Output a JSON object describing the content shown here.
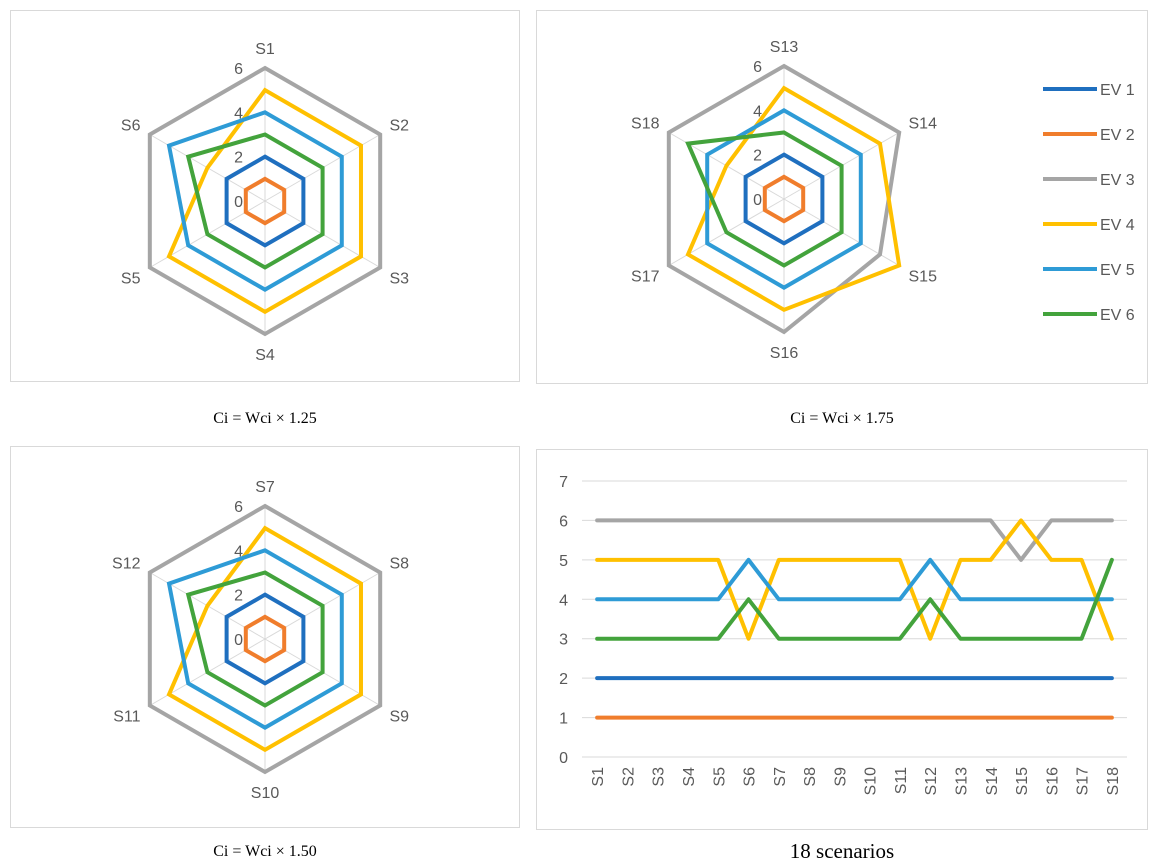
{
  "colors": {
    "EV 1": "#1f6fbf",
    "EV 2": "#f07d2c",
    "EV 3": "#a5a5a5",
    "EV 4": "#ffc000",
    "EV 5": "#2e9bd6",
    "EV 6": "#43a33c",
    "grid": "#d9d9d9"
  },
  "captions": {
    "radar1": "Ci = Wci × 1.25",
    "radar2": "Ci = Wci × 1.75",
    "radar3": "Ci = Wci × 1.50",
    "line": "18 scenarios"
  },
  "chart_data": [
    {
      "type": "radar",
      "caption": "Ci = Wci × 1.25",
      "categories": [
        "S1",
        "S2",
        "S3",
        "S4",
        "S5",
        "S6"
      ],
      "rlim": [
        0,
        6
      ],
      "ticks": [
        "0",
        "2",
        "4",
        "6"
      ],
      "series": [
        {
          "name": "EV 1",
          "values": [
            2,
            2,
            2,
            2,
            2,
            2
          ]
        },
        {
          "name": "EV 2",
          "values": [
            1,
            1,
            1,
            1,
            1,
            1
          ]
        },
        {
          "name": "EV 3",
          "values": [
            6,
            6,
            6,
            6,
            6,
            6
          ]
        },
        {
          "name": "EV 4",
          "values": [
            5,
            5,
            5,
            5,
            5,
            3
          ]
        },
        {
          "name": "EV 5",
          "values": [
            4,
            4,
            4,
            4,
            4,
            5
          ]
        },
        {
          "name": "EV 6",
          "values": [
            3,
            3,
            3,
            3,
            3,
            4
          ]
        }
      ]
    },
    {
      "type": "radar",
      "caption": "Ci = Wci × 1.75",
      "categories": [
        "S13",
        "S14",
        "S15",
        "S16",
        "S17",
        "S18"
      ],
      "rlim": [
        0,
        6
      ],
      "ticks": [
        "0",
        "2",
        "4",
        "6"
      ],
      "legend": "right",
      "series": [
        {
          "name": "EV 1",
          "values": [
            2,
            2,
            2,
            2,
            2,
            2
          ]
        },
        {
          "name": "EV 2",
          "values": [
            1,
            1,
            1,
            1,
            1,
            1
          ]
        },
        {
          "name": "EV 3",
          "values": [
            6,
            6,
            5,
            6,
            6,
            6
          ]
        },
        {
          "name": "EV 4",
          "values": [
            5,
            5,
            6,
            5,
            5,
            3
          ]
        },
        {
          "name": "EV 5",
          "values": [
            4,
            4,
            4,
            4,
            4,
            4
          ]
        },
        {
          "name": "EV 6",
          "values": [
            3,
            3,
            3,
            3,
            3,
            5
          ]
        }
      ]
    },
    {
      "type": "radar",
      "caption": "Ci = Wci × 1.50",
      "categories": [
        "S7",
        "S8",
        "S9",
        "S10",
        "S11",
        "S12"
      ],
      "rlim": [
        0,
        6
      ],
      "ticks": [
        "0",
        "2",
        "4",
        "6"
      ],
      "series": [
        {
          "name": "EV 1",
          "values": [
            2,
            2,
            2,
            2,
            2,
            2
          ]
        },
        {
          "name": "EV 2",
          "values": [
            1,
            1,
            1,
            1,
            1,
            1
          ]
        },
        {
          "name": "EV 3",
          "values": [
            6,
            6,
            6,
            6,
            6,
            6
          ]
        },
        {
          "name": "EV 4",
          "values": [
            5,
            5,
            5,
            5,
            5,
            3
          ]
        },
        {
          "name": "EV 5",
          "values": [
            4,
            4,
            4,
            4,
            4,
            5
          ]
        },
        {
          "name": "EV 6",
          "values": [
            3,
            3,
            3,
            3,
            3,
            4
          ]
        }
      ]
    },
    {
      "type": "line",
      "caption": "18 scenarios",
      "categories": [
        "S1",
        "S2",
        "S3",
        "S4",
        "S5",
        "S6",
        "S7",
        "S8",
        "S9",
        "S10",
        "S11",
        "S12",
        "S13",
        "S14",
        "S15",
        "S16",
        "S17",
        "S18"
      ],
      "ylim": [
        0,
        7
      ],
      "yticks": [
        0,
        1,
        2,
        3,
        4,
        5,
        6,
        7
      ],
      "grid": true,
      "series": [
        {
          "name": "EV 1",
          "values": [
            2,
            2,
            2,
            2,
            2,
            2,
            2,
            2,
            2,
            2,
            2,
            2,
            2,
            2,
            2,
            2,
            2,
            2
          ]
        },
        {
          "name": "EV 2",
          "values": [
            1,
            1,
            1,
            1,
            1,
            1,
            1,
            1,
            1,
            1,
            1,
            1,
            1,
            1,
            1,
            1,
            1,
            1
          ]
        },
        {
          "name": "EV 3",
          "values": [
            6,
            6,
            6,
            6,
            6,
            6,
            6,
            6,
            6,
            6,
            6,
            6,
            6,
            6,
            5,
            6,
            6,
            6
          ]
        },
        {
          "name": "EV 4",
          "values": [
            5,
            5,
            5,
            5,
            5,
            3,
            5,
            5,
            5,
            5,
            5,
            3,
            5,
            5,
            6,
            5,
            5,
            3
          ]
        },
        {
          "name": "EV 5",
          "values": [
            4,
            4,
            4,
            4,
            4,
            5,
            4,
            4,
            4,
            4,
            4,
            5,
            4,
            4,
            4,
            4,
            4,
            4
          ]
        },
        {
          "name": "EV 6",
          "values": [
            3,
            3,
            3,
            3,
            3,
            4,
            3,
            3,
            3,
            3,
            3,
            4,
            3,
            3,
            3,
            3,
            3,
            5
          ]
        }
      ]
    }
  ]
}
